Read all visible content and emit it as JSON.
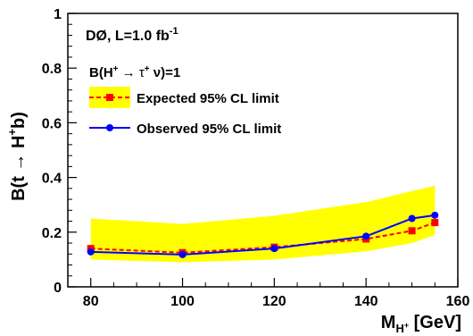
{
  "chart_data": {
    "type": "line",
    "x": [
      80,
      100,
      120,
      140,
      150,
      155
    ],
    "xlim": [
      75,
      160
    ],
    "ylim": [
      0,
      1
    ],
    "xticks": [
      80,
      100,
      120,
      140,
      160
    ],
    "yticks": [
      0,
      0.2,
      0.4,
      0.6,
      0.8,
      1
    ],
    "xtick_labels": [
      "80",
      "100",
      "120",
      "140",
      "160"
    ],
    "ytick_labels": [
      "0",
      "0.2",
      "0.4",
      "0.6",
      "0.8",
      "1"
    ],
    "xlabel": "M",
    "xlabel_sub": "H",
    "xlabel_subsup": "+",
    "xlabel_unit": " [GeV]",
    "ylabel_parts": {
      "pre": "B(t ",
      "arrow": "→",
      "mid": " H",
      "sup": "+",
      "post": "b)"
    },
    "experiment": {
      "main": "DØ, L=1.0 fb",
      "sup": "-1"
    },
    "assumption": {
      "pre": "B(H",
      "sup1": "+",
      "arrow": " → τ",
      "sup2": "+",
      "post": " ν)=1"
    },
    "band": {
      "name": "",
      "lower": [
        0.1,
        0.09,
        0.1,
        0.13,
        0.16,
        0.19
      ],
      "upper": [
        0.25,
        0.23,
        0.26,
        0.31,
        0.35,
        0.37
      ],
      "color": "#ffff00"
    },
    "series": [
      {
        "name": "Expected 95% CL limit",
        "values": [
          0.14,
          0.125,
          0.145,
          0.175,
          0.205,
          0.235
        ],
        "color": "#ff0000",
        "style": "dashed",
        "marker": "square"
      },
      {
        "name": "Observed 95% CL limit",
        "values": [
          0.128,
          0.118,
          0.14,
          0.185,
          0.25,
          0.262
        ],
        "color": "#0000ff",
        "style": "solid",
        "marker": "circle"
      }
    ],
    "legend_placement": "top-left",
    "grid": false
  }
}
